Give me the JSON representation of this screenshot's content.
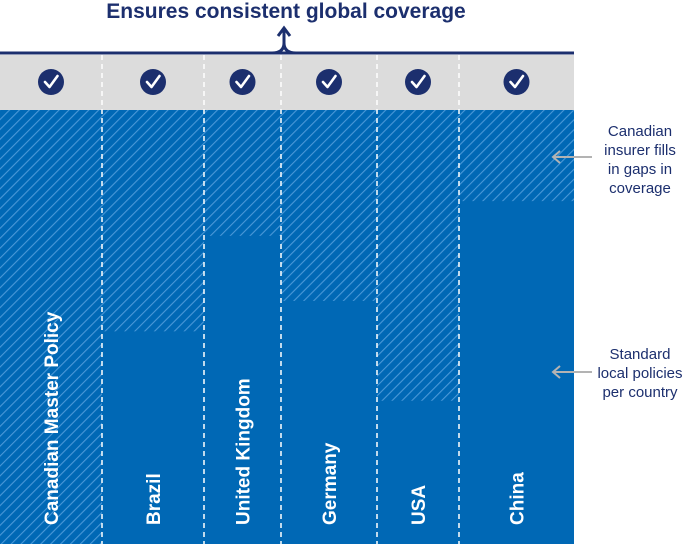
{
  "title": "Ensures consistent global coverage",
  "columns": [
    {
      "label": "Canadian Master Policy",
      "local_policy_fraction": 0
    },
    {
      "label": "Brazil",
      "local_policy_fraction": 0.49
    },
    {
      "label": "United Kingdom",
      "local_policy_fraction": 0.71
    },
    {
      "label": "Germany",
      "local_policy_fraction": 0.56
    },
    {
      "label": "USA",
      "local_policy_fraction": 0.33
    },
    {
      "label": "China",
      "local_policy_fraction": 0.79
    }
  ],
  "annotations": {
    "gap_fill": [
      "Canadian",
      "insurer fills",
      "in gaps in",
      "coverage"
    ],
    "local": [
      "Standard",
      "local policies",
      "per country"
    ]
  },
  "colors": {
    "navy": "#1c2f6e",
    "solid_blue": "#0068b5",
    "hatch_light": "#4a98d8",
    "header_bg": "#dcdcdc",
    "arrow_grey": "#b3b3b3"
  },
  "icons": {
    "check": "check-circle-icon",
    "arrow": "arrow-left-icon"
  }
}
